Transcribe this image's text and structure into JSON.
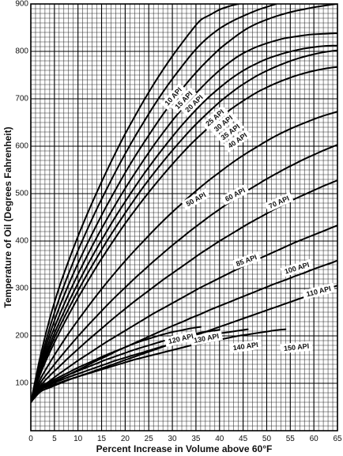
{
  "chart_data": {
    "type": "line",
    "xlabel": "Percent Increase in Volume above 60°F",
    "ylabel": "Temperature of Oil (Degrees Fahrenheit)",
    "xlim": [
      0,
      65
    ],
    "ylim": [
      0,
      900
    ],
    "x_ticks": [
      0,
      5,
      10,
      15,
      20,
      25,
      30,
      35,
      40,
      45,
      50,
      55,
      60,
      65
    ],
    "y_ticks": [
      100,
      200,
      300,
      400,
      500,
      600,
      700,
      800,
      900
    ],
    "grid": true,
    "series": [
      {
        "name": "10 API",
        "x": [
          0,
          2,
          4,
          6,
          8,
          10,
          12,
          14,
          16,
          18,
          20,
          22,
          24,
          26,
          28,
          30,
          32,
          34,
          36,
          38,
          40,
          42,
          44,
          46
        ],
        "y": [
          60,
          156,
          236,
          302,
          358,
          410,
          458,
          503,
          546,
          587,
          626,
          662,
          697,
          730,
          761,
          790,
          817,
          843,
          866,
          877,
          888,
          895,
          900,
          905
        ]
      },
      {
        "name": "15 API",
        "x": [
          0,
          2,
          4,
          6,
          8,
          10,
          12,
          14,
          16,
          18,
          20,
          22,
          24,
          26,
          28,
          30,
          32,
          34,
          36,
          38,
          40,
          42,
          44,
          48,
          52
        ],
        "y": [
          60,
          145,
          217,
          278,
          331,
          380,
          425,
          468,
          508,
          547,
          584,
          619,
          652,
          684,
          714,
          742,
          768,
          793,
          815,
          833,
          848,
          860,
          870,
          887,
          900
        ]
      },
      {
        "name": "20 API",
        "x": [
          0,
          2,
          4,
          6,
          8,
          10,
          12,
          14,
          16,
          18,
          20,
          22,
          24,
          26,
          28,
          30,
          32,
          34,
          36,
          38,
          40,
          42,
          44,
          46,
          48,
          50,
          52,
          54,
          56,
          58,
          60,
          62,
          64,
          65
        ],
        "y": [
          60,
          138,
          203,
          259,
          308,
          353,
          395,
          435,
          473,
          509,
          544,
          577,
          608,
          638,
          667,
          694,
          720,
          744,
          766,
          786,
          805,
          821,
          836,
          849,
          859,
          867,
          874,
          880,
          885,
          889,
          893,
          896,
          899,
          900
        ]
      },
      {
        "name": "25 API",
        "x": [
          0,
          2,
          4,
          6,
          8,
          10,
          12,
          14,
          16,
          18,
          20,
          22,
          24,
          26,
          28,
          30,
          32,
          34,
          36,
          38,
          40,
          42,
          44,
          46,
          48,
          50,
          52,
          54,
          56,
          58,
          60,
          62,
          64,
          65
        ],
        "y": [
          60,
          132,
          191,
          242,
          288,
          330,
          370,
          408,
          444,
          478,
          511,
          542,
          572,
          601,
          628,
          654,
          678,
          701,
          722,
          742,
          760,
          776,
          790,
          801,
          810,
          817,
          823,
          828,
          831,
          834,
          836,
          837,
          838,
          838
        ]
      },
      {
        "name": "30 API",
        "x": [
          0,
          2,
          4,
          6,
          8,
          10,
          12,
          14,
          16,
          18,
          20,
          22,
          24,
          26,
          28,
          30,
          32,
          34,
          36,
          38,
          40,
          42,
          44,
          46,
          48,
          50,
          52,
          54,
          56,
          58,
          60,
          62,
          64,
          65
        ],
        "y": [
          60,
          127,
          181,
          228,
          271,
          311,
          349,
          385,
          419,
          452,
          483,
          513,
          542,
          569,
          595,
          620,
          644,
          666,
          687,
          706,
          723,
          739,
          753,
          765,
          775,
          784,
          791,
          797,
          802,
          806,
          809,
          811,
          812,
          812
        ]
      },
      {
        "name": "35 API",
        "x": [
          0,
          2,
          4,
          6,
          8,
          10,
          12,
          14,
          16,
          18,
          20,
          22,
          24,
          26,
          28,
          30,
          32,
          34,
          36,
          38,
          40,
          42,
          44,
          46,
          48,
          50,
          52,
          54,
          56,
          58,
          60,
          62,
          64,
          65
        ],
        "y": [
          60,
          123,
          173,
          217,
          257,
          295,
          331,
          365,
          398,
          429,
          459,
          488,
          516,
          542,
          567,
          591,
          614,
          636,
          656,
          675,
          693,
          709,
          724,
          737,
          749,
          759,
          768,
          776,
          783,
          789,
          794,
          798,
          801,
          802
        ]
      },
      {
        "name": "40 API",
        "x": [
          0,
          2,
          4,
          6,
          8,
          10,
          12,
          14,
          16,
          18,
          20,
          22,
          24,
          26,
          28,
          30,
          32,
          34,
          36,
          38,
          40,
          42,
          44,
          46,
          48,
          50,
          52,
          54,
          56,
          58,
          60,
          62,
          64,
          65
        ],
        "y": [
          60,
          119,
          165,
          206,
          244,
          280,
          314,
          347,
          378,
          408,
          437,
          464,
          490,
          515,
          539,
          562,
          584,
          605,
          624,
          642,
          659,
          675,
          689,
          702,
          714,
          724,
          733,
          741,
          748,
          754,
          759,
          763,
          766,
          767
        ]
      },
      {
        "name": "50 API",
        "x": [
          0,
          2,
          4,
          6,
          8,
          10,
          12,
          14,
          16,
          18,
          20,
          22,
          24,
          26,
          28,
          30,
          32,
          34,
          36,
          38,
          40,
          42,
          44,
          46,
          48,
          50,
          52,
          54,
          56,
          58,
          60,
          62,
          64,
          65
        ],
        "y": [
          60,
          108,
          143,
          175,
          205,
          233,
          260,
          286,
          311,
          335,
          358,
          380,
          401,
          422,
          442,
          461,
          479,
          497,
          514,
          530,
          545,
          560,
          574,
          587,
          599,
          611,
          622,
          632,
          641,
          649,
          657,
          664,
          670,
          673
        ]
      },
      {
        "name": "60 API",
        "x": [
          0,
          2,
          4,
          6,
          8,
          10,
          12,
          14,
          16,
          18,
          20,
          22,
          24,
          26,
          28,
          30,
          32,
          34,
          36,
          38,
          40,
          42,
          44,
          46,
          48,
          50,
          52,
          54,
          56,
          58,
          60,
          62,
          64,
          65
        ],
        "y": [
          60,
          100,
          127,
          152,
          176,
          199,
          221,
          242,
          263,
          283,
          302,
          321,
          339,
          357,
          374,
          391,
          407,
          423,
          438,
          453,
          467,
          481,
          494,
          507,
          519,
          531,
          542,
          553,
          563,
          573,
          582,
          591,
          599,
          603
        ]
      },
      {
        "name": "70 API",
        "x": [
          0,
          2,
          4,
          6,
          8,
          10,
          12,
          14,
          16,
          18,
          20,
          22,
          24,
          26,
          28,
          30,
          32,
          34,
          36,
          38,
          40,
          42,
          44,
          46,
          48,
          50,
          52,
          54,
          56,
          58,
          60,
          62,
          64,
          65
        ],
        "y": [
          60,
          94,
          116,
          135,
          154,
          172,
          190,
          207,
          224,
          241,
          257,
          273,
          288,
          303,
          318,
          332,
          346,
          360,
          374,
          387,
          400,
          412,
          424,
          436,
          447,
          458,
          469,
          479,
          489,
          498,
          507,
          516,
          524,
          528
        ]
      },
      {
        "name": "85 API",
        "x": [
          0,
          2,
          4,
          6,
          8,
          10,
          12,
          14,
          16,
          18,
          20,
          22,
          24,
          26,
          28,
          30,
          32,
          34,
          36,
          38,
          40,
          42,
          44,
          46,
          48,
          50,
          52,
          54,
          56,
          58,
          60,
          62,
          64,
          65
        ],
        "y": [
          60,
          89,
          105,
          120,
          134,
          148,
          161,
          174,
          187,
          199,
          211,
          223,
          235,
          247,
          258,
          269,
          280,
          291,
          302,
          312,
          322,
          332,
          342,
          352,
          361,
          370,
          379,
          388,
          397,
          405,
          413,
          421,
          429,
          433
        ]
      },
      {
        "name": "100 API",
        "x": [
          0,
          2,
          4,
          6,
          8,
          10,
          12,
          14,
          16,
          18,
          20,
          22,
          24,
          26,
          28,
          30,
          32,
          34,
          36,
          38,
          40,
          42,
          44,
          46,
          48,
          50,
          52,
          54,
          56,
          58,
          60,
          62,
          64,
          65
        ],
        "y": [
          60,
          85,
          97,
          108,
          118,
          128,
          138,
          148,
          157,
          167,
          176,
          185,
          194,
          203,
          212,
          221,
          229,
          238,
          246,
          255,
          263,
          271,
          279,
          287,
          295,
          303,
          311,
          318,
          326,
          333,
          341,
          348,
          355,
          359
        ]
      },
      {
        "name": "110 API",
        "x": [
          0,
          2,
          4,
          6,
          8,
          10,
          12,
          14,
          16,
          18,
          20,
          22,
          24,
          26,
          28,
          30,
          32,
          34,
          36,
          38,
          40,
          42,
          44,
          46,
          48,
          50,
          52,
          54,
          56,
          58,
          60,
          62,
          64,
          65
        ],
        "y": [
          60,
          82,
          91,
          99,
          107,
          114,
          121,
          128,
          135,
          142,
          149,
          156,
          163,
          170,
          177,
          184,
          191,
          198,
          205,
          212,
          219,
          226,
          233,
          240,
          247,
          254,
          261,
          268,
          275,
          282,
          289,
          296,
          303,
          306
        ]
      },
      {
        "name": "120 API",
        "x": [
          0,
          2,
          4,
          6,
          8,
          10,
          12,
          14,
          16,
          18,
          20,
          22,
          24,
          26,
          28,
          30,
          32,
          34,
          36
        ],
        "y": [
          60,
          92,
          103,
          113,
          123,
          133,
          142,
          151,
          160,
          168,
          176,
          184,
          191,
          197,
          203,
          208,
          212,
          216,
          219
        ]
      },
      {
        "name": "130 API",
        "x": [
          0,
          2,
          4,
          6,
          8,
          10,
          12,
          14,
          16,
          18,
          20,
          22,
          24,
          26,
          28,
          30,
          32,
          34,
          36,
          38,
          40
        ],
        "y": [
          60,
          90,
          100,
          109,
          118,
          126,
          134,
          142,
          150,
          157,
          164,
          171,
          177,
          183,
          189,
          194,
          199,
          203,
          207,
          210,
          213
        ]
      },
      {
        "name": "140 API",
        "x": [
          0,
          2,
          4,
          6,
          8,
          10,
          12,
          14,
          16,
          18,
          20,
          22,
          24,
          26,
          28,
          30,
          32,
          34,
          36,
          38,
          40,
          42,
          44,
          46
        ],
        "y": [
          60,
          88,
          97,
          105,
          113,
          120,
          127,
          134,
          141,
          148,
          154,
          160,
          166,
          172,
          178,
          183,
          188,
          193,
          197,
          201,
          205,
          208,
          211,
          214
        ]
      },
      {
        "name": "150 API",
        "x": [
          0,
          2,
          4,
          6,
          8,
          10,
          12,
          14,
          16,
          18,
          20,
          22,
          24,
          26,
          28,
          30,
          32,
          34,
          36,
          38,
          40,
          42,
          44,
          46,
          48,
          50,
          52,
          54
        ],
        "y": [
          60,
          86,
          94,
          101,
          108,
          114,
          120,
          126,
          132,
          138,
          144,
          150,
          155,
          160,
          165,
          170,
          175,
          180,
          184,
          188,
          192,
          196,
          200,
          203,
          206,
          209,
          212,
          214
        ]
      }
    ],
    "curve_labels": [
      {
        "text": "10 API",
        "x": 30.2,
        "y": 705,
        "angle": -48
      },
      {
        "text": "15 API",
        "x": 32.4,
        "y": 697,
        "angle": -46
      },
      {
        "text": "20 API",
        "x": 34.6,
        "y": 690,
        "angle": -44
      },
      {
        "text": "25 API",
        "x": 39.0,
        "y": 660,
        "angle": -41
      },
      {
        "text": "30 API",
        "x": 40.8,
        "y": 648,
        "angle": -39
      },
      {
        "text": "35 API",
        "x": 42.3,
        "y": 630,
        "angle": -37
      },
      {
        "text": "40 API",
        "x": 43.8,
        "y": 612,
        "angle": -35
      },
      {
        "text": "50 API",
        "x": 35.0,
        "y": 488,
        "angle": -29
      },
      {
        "text": "60 API",
        "x": 43.3,
        "y": 498,
        "angle": -28
      },
      {
        "text": "70 API",
        "x": 52.6,
        "y": 482,
        "angle": -24
      },
      {
        "text": "85 API",
        "x": 45.7,
        "y": 359,
        "angle": -20
      },
      {
        "text": "100 API",
        "x": 56.4,
        "y": 343,
        "angle": -17
      },
      {
        "text": "110 API",
        "x": 61.0,
        "y": 294,
        "angle": -14
      },
      {
        "text": "120 API",
        "x": 31.8,
        "y": 194,
        "angle": -13
      },
      {
        "text": "130 API",
        "x": 37.2,
        "y": 195,
        "angle": -11
      },
      {
        "text": "140 API",
        "x": 45.5,
        "y": 178,
        "angle": -8
      },
      {
        "text": "150 API",
        "x": 56.3,
        "y": 176,
        "angle": -6
      }
    ]
  }
}
